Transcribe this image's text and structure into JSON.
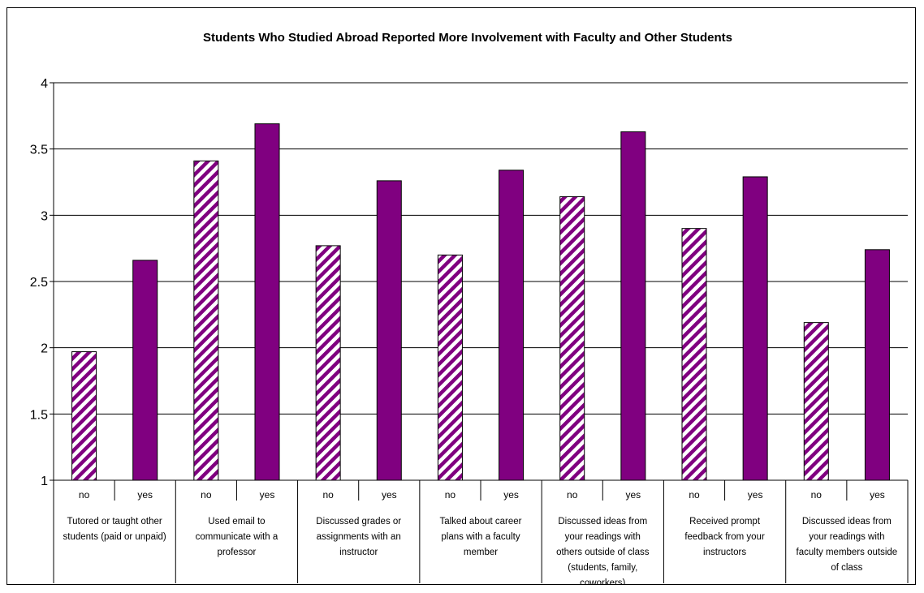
{
  "chart_data": {
    "type": "bar",
    "title": "Students Who Studied Abroad Reported More Involvement with Faculty and Other Students",
    "ylim": [
      1,
      4
    ],
    "yticks": [
      "1",
      "1.5",
      "2",
      "2.5",
      "3",
      "3.5",
      "4"
    ],
    "grid": true,
    "legend": "none",
    "colors": {
      "fill": "#800080",
      "hatch_bg": "#ffffff",
      "grid": "#000000"
    },
    "groups": [
      {
        "label": [
          "Tutored or taught other",
          "students (paid or unpaid)"
        ],
        "bars": [
          {
            "sub": "no",
            "value": 1.97,
            "style": "hatched"
          },
          {
            "sub": "yes",
            "value": 2.66,
            "style": "solid"
          }
        ]
      },
      {
        "label": [
          "Used email to",
          "communicate with a",
          "professor"
        ],
        "bars": [
          {
            "sub": "no",
            "value": 3.41,
            "style": "hatched"
          },
          {
            "sub": "yes",
            "value": 3.69,
            "style": "solid"
          }
        ]
      },
      {
        "label": [
          "Discussed grades or",
          "assignments with an",
          "instructor"
        ],
        "bars": [
          {
            "sub": "no",
            "value": 2.77,
            "style": "hatched"
          },
          {
            "sub": "yes",
            "value": 3.26,
            "style": "solid"
          }
        ]
      },
      {
        "label": [
          "Talked about career",
          "plans with a faculty",
          "member"
        ],
        "bars": [
          {
            "sub": "no",
            "value": 2.7,
            "style": "hatched"
          },
          {
            "sub": "yes",
            "value": 3.34,
            "style": "solid"
          }
        ]
      },
      {
        "label": [
          "Discussed ideas from",
          "your readings with",
          "others outside of class",
          "(students, family,",
          "coworkers)"
        ],
        "bars": [
          {
            "sub": "no",
            "value": 3.14,
            "style": "hatched"
          },
          {
            "sub": "yes",
            "value": 3.63,
            "style": "solid"
          }
        ]
      },
      {
        "label": [
          "Received prompt",
          "feedback from your",
          "instructors"
        ],
        "bars": [
          {
            "sub": "no",
            "value": 2.9,
            "style": "hatched"
          },
          {
            "sub": "yes",
            "value": 3.29,
            "style": "solid"
          }
        ]
      },
      {
        "label": [
          "Discussed ideas from",
          "your readings with",
          "faculty members outside",
          "of class"
        ],
        "bars": [
          {
            "sub": "no",
            "value": 2.19,
            "style": "hatched"
          },
          {
            "sub": "yes",
            "value": 2.74,
            "style": "solid"
          }
        ]
      }
    ]
  }
}
